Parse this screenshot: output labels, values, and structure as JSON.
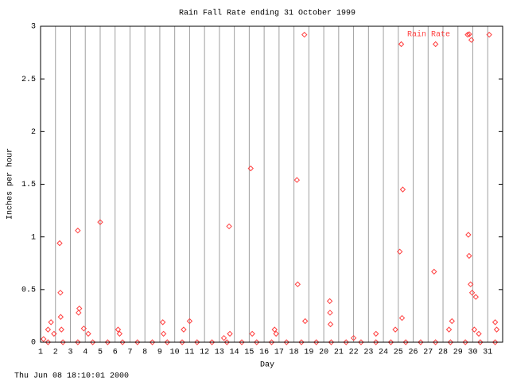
{
  "chart_data": {
    "type": "scatter",
    "title": "Rain Fall Rate ending 31 October 1999",
    "x_label": "Day",
    "y_label": "Inches per hour",
    "footer": "Thu Jun 08 18:10:01 2000",
    "grid": "x",
    "legend_position": "upper right",
    "xlim": [
      1,
      32
    ],
    "xticks": [
      1,
      2,
      3,
      4,
      5,
      6,
      7,
      8,
      9,
      10,
      11,
      12,
      13,
      14,
      15,
      16,
      17,
      18,
      19,
      20,
      21,
      22,
      23,
      24,
      25,
      26,
      27,
      28,
      29,
      30,
      31
    ],
    "ylim": [
      0,
      3
    ],
    "yticks": [
      0,
      0.5,
      1,
      1.5,
      2,
      2.5,
      3
    ],
    "series": [
      {
        "name": "Rain Rate",
        "color": "#ff4040",
        "x": [
          1.2,
          1.5,
          1.7,
          1.9,
          2.28,
          2.33,
          2.35,
          2.4,
          3.5,
          3.6,
          3.55,
          3.9,
          4.2,
          5.0,
          6.2,
          6.3,
          9.2,
          9.25,
          10.6,
          11.0,
          13.3,
          13.65,
          13.7,
          15.1,
          15.2,
          16.7,
          16.8,
          18.2,
          18.25,
          18.7,
          18.75,
          20.4,
          20.42,
          20.45,
          22.0,
          23.5,
          24.8,
          25.1,
          25.2,
          25.3,
          25.25,
          27.4,
          27.5,
          28.4,
          28.6,
          29.65,
          29.7,
          29.75,
          29.9,
          29.85,
          29.95,
          30.2,
          30.1,
          30.4,
          31.1,
          31.5,
          31.6,
          1.5,
          2.5,
          3.5,
          4.5,
          5.5,
          6.5,
          7.5,
          8.5,
          9.5,
          10.5,
          11.5,
          12.5,
          13.5,
          14.5,
          15.5,
          16.5,
          17.5,
          18.5,
          19.5,
          20.5,
          21.5,
          22.5,
          23.5,
          24.5,
          25.5,
          26.5,
          27.5,
          28.5,
          29.5,
          30.5,
          31.5
        ],
        "values": [
          0.03,
          0.12,
          0.19,
          0.08,
          0.94,
          0.47,
          0.24,
          0.12,
          1.06,
          0.32,
          0.28,
          0.13,
          0.08,
          1.14,
          0.12,
          0.08,
          0.19,
          0.08,
          0.12,
          0.2,
          0.04,
          1.1,
          0.08,
          1.65,
          0.08,
          0.12,
          0.08,
          1.54,
          0.55,
          2.92,
          0.2,
          0.39,
          0.28,
          0.17,
          0.04,
          0.08,
          0.12,
          0.86,
          2.83,
          1.45,
          0.23,
          0.67,
          2.83,
          0.12,
          0.2,
          2.92,
          1.02,
          0.82,
          2.87,
          0.55,
          0.47,
          0.43,
          0.12,
          0.08,
          2.92,
          0.19,
          0.12,
          0,
          0,
          0,
          0,
          0,
          0,
          0,
          0,
          0,
          0,
          0,
          0,
          0,
          0,
          0,
          0,
          0,
          0,
          0,
          0,
          0,
          0,
          0,
          0,
          0,
          0,
          0,
          0,
          0,
          0,
          0
        ]
      }
    ]
  }
}
